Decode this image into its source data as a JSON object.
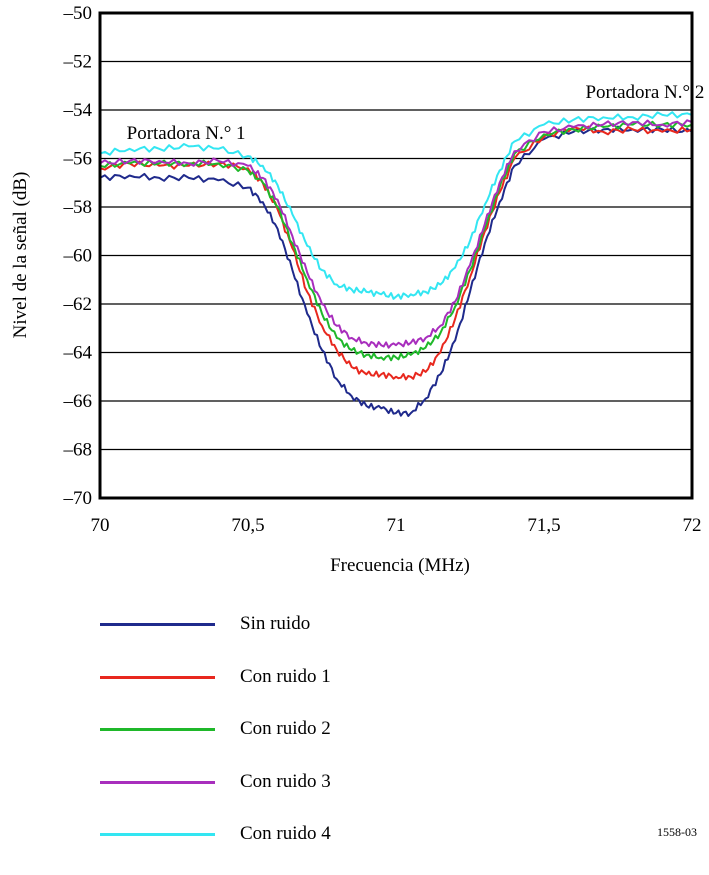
{
  "chart_data": {
    "type": "line",
    "xlabel": "Frecuencia (MHz)",
    "ylabel": "Nivel de la señal (dB)",
    "xlim": [
      70,
      72
    ],
    "ylim": [
      -70,
      -50
    ],
    "x_ticks": [
      70,
      70.5,
      71,
      71.5,
      72
    ],
    "x_tick_labels": [
      "70",
      "70,5",
      "71",
      "71,5",
      "72"
    ],
    "y_ticks": [
      -50,
      -52,
      -54,
      -56,
      -58,
      -60,
      -62,
      -64,
      -66,
      -68,
      -70
    ],
    "y_tick_labels": [
      "–50",
      "–52",
      "–54",
      "–56",
      "–58",
      "–60",
      "–62",
      "–64",
      "–66",
      "–68",
      "–70"
    ],
    "grid": "horizontal",
    "legend_position": "below",
    "annotations": [
      {
        "text": "Portadora N.° 1",
        "x": 70.09,
        "y": -55.2
      },
      {
        "text": "Portadora N.° 2",
        "x": 71.64,
        "y": -53.5
      }
    ],
    "x": [
      70.0,
      70.1,
      70.2,
      70.3,
      70.4,
      70.5,
      70.55,
      70.6,
      70.65,
      70.7,
      70.75,
      70.8,
      70.85,
      70.9,
      70.95,
      71.0,
      71.05,
      71.1,
      71.15,
      71.2,
      71.25,
      71.3,
      71.35,
      71.4,
      71.5,
      71.6,
      71.7,
      71.8,
      71.9,
      72.0
    ],
    "series": [
      {
        "name": "Sin ruido",
        "color": "#1f2a8c",
        "values": [
          -56.8,
          -56.7,
          -56.8,
          -56.8,
          -56.9,
          -57.2,
          -57.8,
          -58.9,
          -60.6,
          -62.4,
          -63.9,
          -65.1,
          -65.8,
          -66.2,
          -66.3,
          -66.5,
          -66.5,
          -65.9,
          -64.9,
          -63.5,
          -61.5,
          -59.5,
          -57.8,
          -56.3,
          -55.2,
          -54.9,
          -54.8,
          -54.8,
          -54.8,
          -54.9
        ]
      },
      {
        "name": "Con ruido 1",
        "color": "#e8281e",
        "values": [
          -56.4,
          -56.2,
          -56.3,
          -56.3,
          -56.2,
          -56.4,
          -57.0,
          -58.1,
          -59.7,
          -61.5,
          -62.9,
          -63.9,
          -64.6,
          -64.9,
          -64.9,
          -65.0,
          -65.0,
          -64.8,
          -64.0,
          -62.6,
          -60.9,
          -59.0,
          -57.4,
          -56.0,
          -55.1,
          -54.7,
          -54.9,
          -54.8,
          -54.9,
          -54.8
        ]
      },
      {
        "name": "Con ruido 2",
        "color": "#1fb82a",
        "values": [
          -56.3,
          -56.2,
          -56.2,
          -56.2,
          -56.2,
          -56.5,
          -57.0,
          -58.0,
          -59.5,
          -61.0,
          -62.4,
          -63.4,
          -63.9,
          -64.1,
          -64.2,
          -64.2,
          -64.1,
          -63.8,
          -63.2,
          -62.1,
          -60.6,
          -58.9,
          -57.2,
          -55.8,
          -55.0,
          -54.8,
          -54.7,
          -54.6,
          -54.6,
          -54.6
        ]
      },
      {
        "name": "Con ruido 3",
        "color": "#a82ebd",
        "values": [
          -56.2,
          -56.1,
          -56.1,
          -56.2,
          -56.1,
          -56.3,
          -56.8,
          -57.7,
          -59.2,
          -60.7,
          -62.0,
          -62.9,
          -63.4,
          -63.6,
          -63.7,
          -63.7,
          -63.6,
          -63.4,
          -62.9,
          -61.9,
          -60.4,
          -58.7,
          -57.0,
          -55.7,
          -54.9,
          -54.7,
          -54.6,
          -54.5,
          -54.6,
          -54.5
        ]
      },
      {
        "name": "Con ruido 4",
        "color": "#33e6f2",
        "values": [
          -55.8,
          -55.6,
          -55.6,
          -55.5,
          -55.6,
          -55.9,
          -56.3,
          -57.1,
          -58.3,
          -59.6,
          -60.6,
          -61.2,
          -61.4,
          -61.5,
          -61.6,
          -61.7,
          -61.6,
          -61.5,
          -61.2,
          -60.5,
          -59.4,
          -57.9,
          -56.5,
          -55.3,
          -54.6,
          -54.4,
          -54.3,
          -54.3,
          -54.2,
          -54.2
        ]
      }
    ]
  },
  "figure_id": "1558-03"
}
